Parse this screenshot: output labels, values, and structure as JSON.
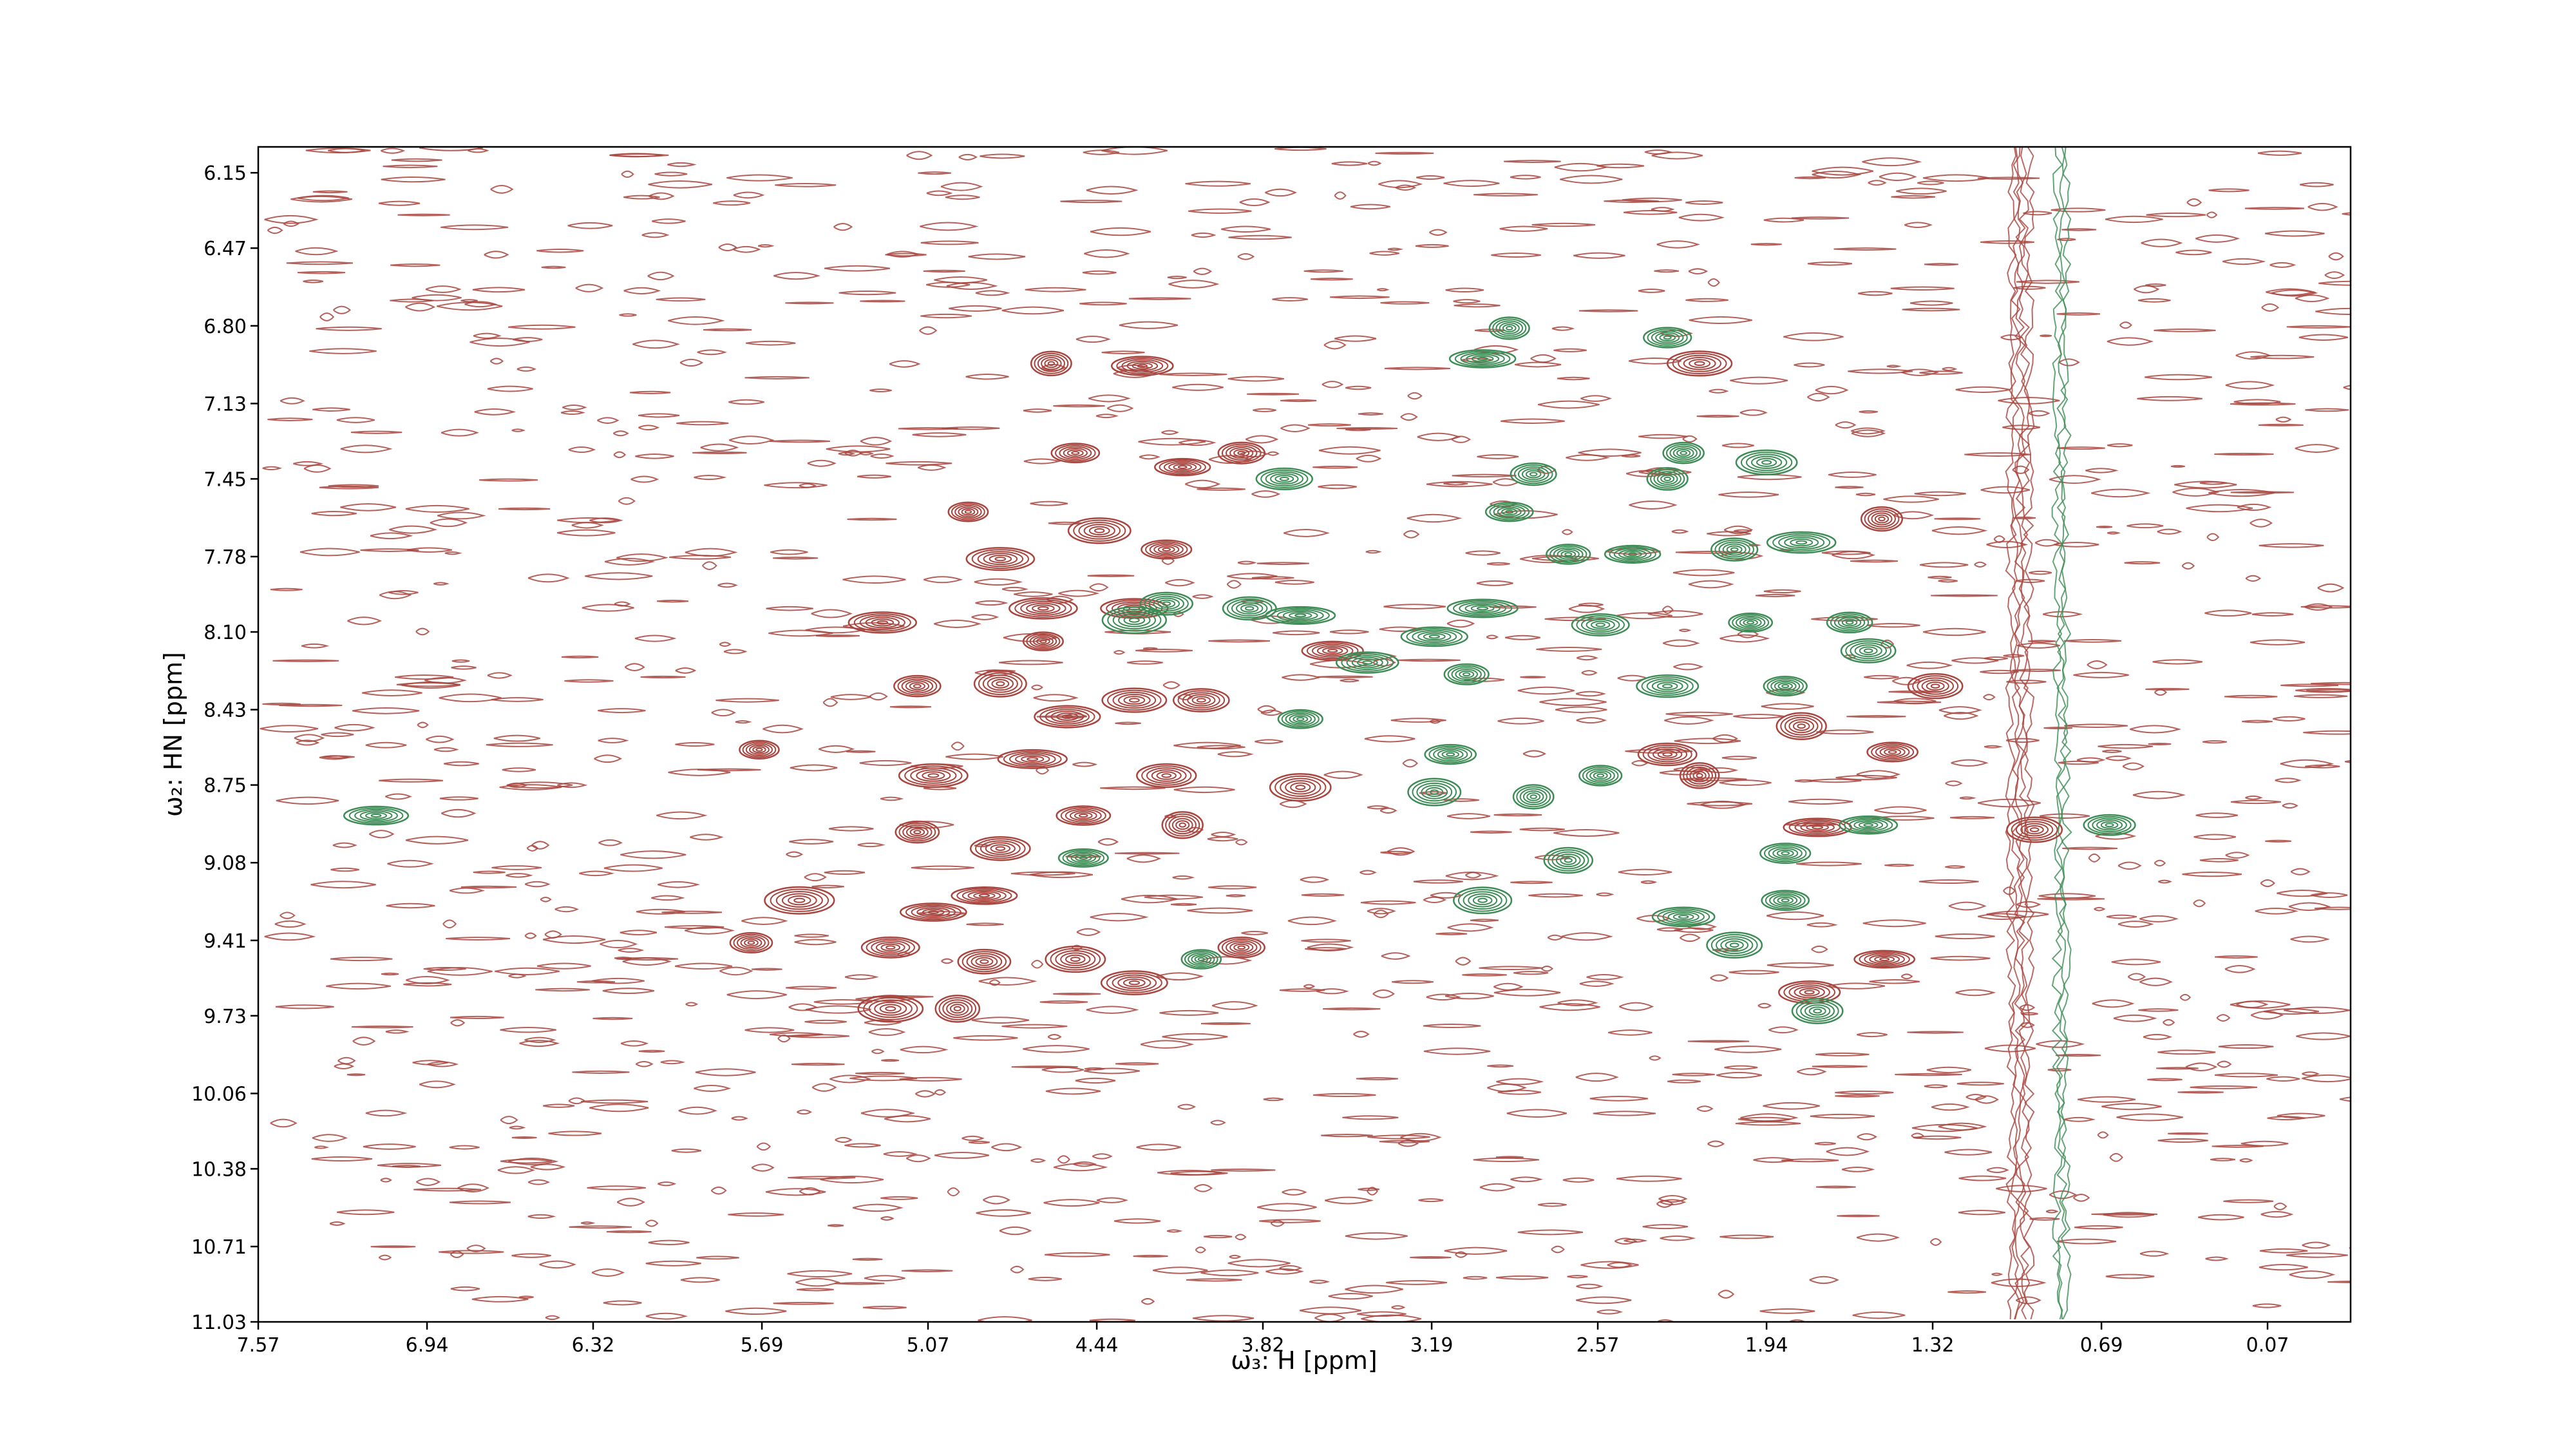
{
  "chart_data": {
    "type": "contour",
    "xlabel": "ω₃: H [ppm]",
    "ylabel": "ω₂: HN [ppm]",
    "xlim": [
      7.57,
      -0.24
    ],
    "ylim": [
      6.04,
      11.03
    ],
    "xticks": [
      7.57,
      6.94,
      6.32,
      5.69,
      5.07,
      4.44,
      3.82,
      3.19,
      2.57,
      1.94,
      1.32,
      0.69,
      0.07
    ],
    "yticks": [
      6.15,
      6.47,
      {
        "value": 6.8,
        "label": "6.80"
      },
      7.13,
      7.45,
      7.78,
      {
        "value": 8.1,
        "label": "8.10"
      },
      8.43,
      8.75,
      9.08,
      9.41,
      9.73,
      10.06,
      10.38,
      10.71,
      11.03
    ],
    "series": [
      {
        "color": "#a8453e",
        "x": [
          4.52,
          4.92,
          4.8,
          4.43,
          4.18,
          4.12,
          3.9,
          4.64,
          4.64,
          4.3,
          5.24,
          5.11,
          4.8,
          4.55,
          4.3,
          4.05,
          5.7,
          5.05,
          4.68,
          4.18,
          5.11,
          4.8,
          4.49,
          4.12,
          5.55,
          5.05,
          4.86,
          5.73,
          5.21,
          4.86,
          4.52,
          5.21,
          4.96,
          4.3,
          4.27,
          4.61,
          1.51,
          1.5,
          1.31,
          1.81,
          1.75,
          2.31,
          2.19,
          1.47,
          0.94,
          3.68,
          1.78,
          2.19,
          3.9,
          3.56
        ],
        "y": [
          7.34,
          7.59,
          7.79,
          7.67,
          7.75,
          7.4,
          7.34,
          8.0,
          8.14,
          8.0,
          8.06,
          8.33,
          8.32,
          8.46,
          8.39,
          8.39,
          8.6,
          8.71,
          8.64,
          8.71,
          8.95,
          9.02,
          8.88,
          8.92,
          9.24,
          9.29,
          9.22,
          9.42,
          9.44,
          9.5,
          9.49,
          9.7,
          9.7,
          9.59,
          6.97,
          6.96,
          7.62,
          9.49,
          8.33,
          8.5,
          8.93,
          8.62,
          8.71,
          8.61,
          8.94,
          8.76,
          9.63,
          6.96,
          9.44,
          8.18
        ]
      },
      {
        "color": "#3d8c55",
        "x": [
          2.9,
          3.0,
          2.31,
          2.31,
          2.81,
          2.9,
          2.25,
          1.94,
          2.68,
          2.44,
          2.06,
          1.81,
          4.18,
          4.3,
          3.87,
          3.68,
          3.0,
          3.18,
          3.43,
          3.06,
          2.56,
          2.0,
          1.63,
          1.56,
          1.87,
          2.31,
          3.68,
          3.12,
          3.18,
          2.81,
          2.56,
          1.87,
          1.56,
          2.68,
          3.0,
          2.25,
          1.87,
          2.06,
          1.75,
          4.49,
          4.05,
          3.74,
          7.13,
          0.66
        ],
        "y": [
          6.81,
          6.94,
          6.85,
          7.45,
          7.43,
          7.59,
          7.34,
          7.38,
          7.77,
          7.77,
          7.75,
          7.72,
          7.98,
          8.05,
          8.0,
          8.03,
          8.0,
          8.12,
          8.23,
          8.28,
          8.07,
          8.06,
          8.06,
          8.18,
          8.33,
          8.33,
          8.47,
          8.62,
          8.78,
          8.8,
          8.71,
          9.04,
          8.92,
          9.07,
          9.24,
          9.31,
          9.24,
          9.43,
          9.71,
          9.06,
          9.49,
          7.45,
          8.88,
          8.92
        ]
      }
    ]
  }
}
